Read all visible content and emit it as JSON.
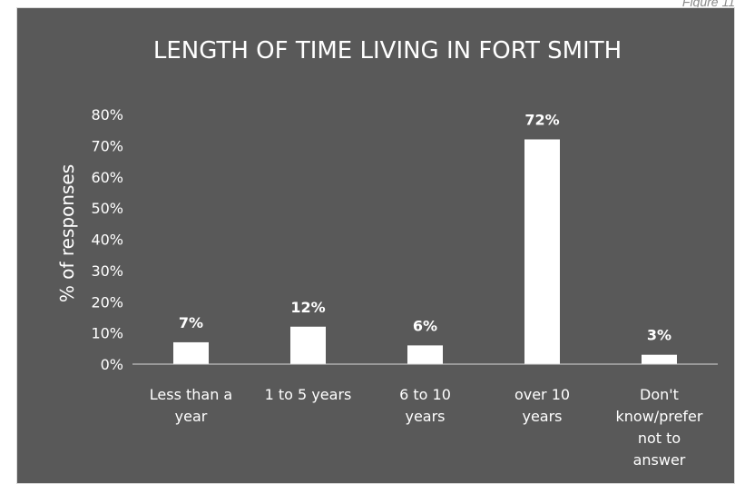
{
  "figure_caption": "Figure 11",
  "colors": {
    "background": "#595959",
    "bar": "#ffffff",
    "text": "#ffffff",
    "axis_line": "#d9d9d9"
  },
  "chart_data": {
    "type": "bar",
    "title": "LENGTH OF TIME LIVING IN FORT SMITH",
    "xlabel": "",
    "ylabel": "% of responses",
    "categories": [
      [
        "Less than a",
        "year"
      ],
      [
        "1 to 5 years"
      ],
      [
        "6 to 10",
        "years"
      ],
      [
        "over 10",
        "years"
      ],
      [
        "Don't",
        "know/prefer",
        "not to",
        "answer"
      ]
    ],
    "values": [
      7,
      12,
      6,
      72,
      3
    ],
    "data_labels": [
      "7%",
      "12%",
      "6%",
      "72%",
      "3%"
    ],
    "ylim": [
      0,
      80
    ],
    "yticks": [
      0,
      10,
      20,
      30,
      40,
      50,
      60,
      70,
      80
    ],
    "ytick_labels": [
      "0%",
      "10%",
      "20%",
      "30%",
      "40%",
      "50%",
      "60%",
      "70%",
      "80%"
    ],
    "grid": false,
    "legend": "none"
  }
}
